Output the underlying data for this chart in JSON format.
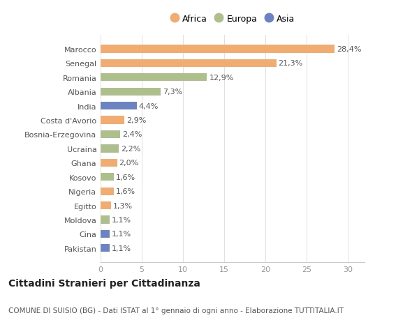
{
  "countries": [
    "Pakistan",
    "Cina",
    "Moldova",
    "Egitto",
    "Nigeria",
    "Kosovo",
    "Ghana",
    "Ucraina",
    "Bosnia-Erzegovina",
    "Costa d'Avorio",
    "India",
    "Albania",
    "Romania",
    "Senegal",
    "Marocco"
  ],
  "values": [
    1.1,
    1.1,
    1.1,
    1.3,
    1.6,
    1.6,
    2.0,
    2.2,
    2.4,
    2.9,
    4.4,
    7.3,
    12.9,
    21.3,
    28.4
  ],
  "labels": [
    "1,1%",
    "1,1%",
    "1,1%",
    "1,3%",
    "1,6%",
    "1,6%",
    "2,0%",
    "2,2%",
    "2,4%",
    "2,9%",
    "4,4%",
    "7,3%",
    "12,9%",
    "21,3%",
    "28,4%"
  ],
  "continent": [
    "Asia",
    "Asia",
    "Europa",
    "Africa",
    "Africa",
    "Europa",
    "Africa",
    "Europa",
    "Europa",
    "Africa",
    "Asia",
    "Europa",
    "Europa",
    "Africa",
    "Africa"
  ],
  "colors": {
    "Africa": "#F2AC72",
    "Europa": "#ADBF8A",
    "Asia": "#6B82C4"
  },
  "xlim": [
    0,
    32
  ],
  "xticks": [
    0,
    5,
    10,
    15,
    20,
    25,
    30
  ],
  "title1": "Cittadini Stranieri per Cittadinanza",
  "title2": "COMUNE DI SUISIO (BG) - Dati ISTAT al 1° gennaio di ogni anno - Elaborazione TUTTITALIA.IT",
  "legend_labels": [
    "Africa",
    "Europa",
    "Asia"
  ],
  "background_color": "#ffffff",
  "bar_height": 0.55,
  "label_fontsize": 8,
  "tick_fontsize": 8,
  "title1_fontsize": 10,
  "title2_fontsize": 7.5
}
